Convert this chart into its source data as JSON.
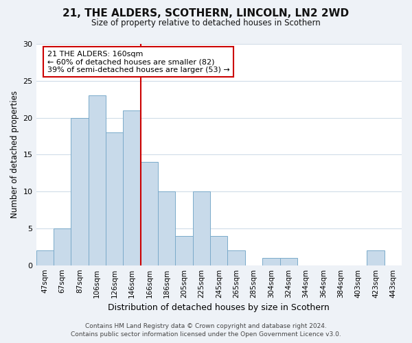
{
  "title": "21, THE ALDERS, SCOTHERN, LINCOLN, LN2 2WD",
  "subtitle": "Size of property relative to detached houses in Scothern",
  "xlabel": "Distribution of detached houses by size in Scothern",
  "ylabel": "Number of detached properties",
  "bar_labels": [
    "47sqm",
    "67sqm",
    "87sqm",
    "106sqm",
    "126sqm",
    "146sqm",
    "166sqm",
    "186sqm",
    "205sqm",
    "225sqm",
    "245sqm",
    "265sqm",
    "285sqm",
    "304sqm",
    "324sqm",
    "344sqm",
    "364sqm",
    "384sqm",
    "403sqm",
    "423sqm",
    "443sqm"
  ],
  "bar_heights": [
    2,
    5,
    20,
    23,
    18,
    21,
    14,
    10,
    4,
    10,
    4,
    2,
    0,
    1,
    1,
    0,
    0,
    0,
    0,
    2,
    0
  ],
  "bar_color": "#c8daea",
  "bar_edge_color": "#7aaaca",
  "vline_x_index": 6,
  "vline_color": "#cc0000",
  "ylim": [
    0,
    30
  ],
  "yticks": [
    0,
    5,
    10,
    15,
    20,
    25,
    30
  ],
  "annotation_title": "21 THE ALDERS: 160sqm",
  "annotation_line1": "← 60% of detached houses are smaller (82)",
  "annotation_line2": "39% of semi-detached houses are larger (53) →",
  "annotation_box_color": "#ffffff",
  "annotation_box_edge": "#cc0000",
  "footer1": "Contains HM Land Registry data © Crown copyright and database right 2024.",
  "footer2": "Contains public sector information licensed under the Open Government Licence v3.0.",
  "background_color": "#eef2f7",
  "plot_background_color": "#ffffff",
  "grid_color": "#d0dce8"
}
